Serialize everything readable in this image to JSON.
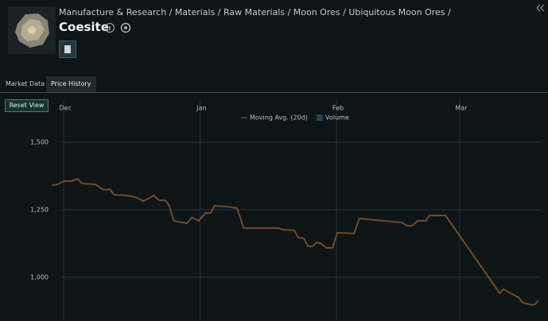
{
  "breadcrumb": "Manufacture & Research / Materials / Raw Materials / Moon Ores / Ubiquitous Moon Ores /",
  "item_name": "Coesite",
  "tabs": [
    "Market Data",
    "Price History"
  ],
  "reset_button": "Reset View",
  "chart_data": {
    "type": "line",
    "x": [
      -2.7,
      -1.4,
      0,
      1.8,
      3.1,
      4.2,
      7.2,
      9.0,
      10.5,
      11.4,
      14.5,
      16.3,
      18.1,
      19.5,
      20.4,
      21.7,
      23.1,
      23.9,
      25.0,
      28.0,
      29.1,
      30.7,
      32.2,
      33.4,
      34.3,
      37.0,
      39.4,
      40.9,
      48.8,
      49.9,
      52.4,
      53.3,
      54.6,
      55.5,
      56.6,
      57.5,
      58.4,
      59.7,
      61.1,
      62.2,
      66.0,
      67.2,
      70.5,
      76.8,
      78.1,
      79.2,
      80.5,
      82.3,
      83.2,
      86.8,
      99.1,
      100.0,
      102.2,
      103.4,
      104.3,
      106.6,
      107.2,
      107.9
    ],
    "series": [
      {
        "name": "Moving Avg. (20d)",
        "color": "#6e4b27",
        "values": [
          1341,
          1344,
          1356,
          1356,
          1365,
          1347,
          1344,
          1324,
          1326,
          1306,
          1303,
          1297,
          1282,
          1294,
          1303,
          1285,
          1285,
          1268,
          1209,
          1200,
          1221,
          1209,
          1238,
          1238,
          1265,
          1262,
          1256,
          1182,
          1182,
          1176,
          1174,
          1147,
          1144,
          1115,
          1115,
          1129,
          1126,
          1109,
          1109,
          1165,
          1162,
          1218,
          1212,
          1203,
          1191,
          1191,
          1209,
          1209,
          1229,
          1229,
          941,
          956,
          935,
          926,
          906,
          897,
          900,
          915
        ]
      },
      {
        "name": "Volume",
        "color": "#1c4656",
        "values": [
          null,
          null,
          null,
          null,
          null,
          null,
          null,
          null,
          null,
          null,
          null,
          null,
          null,
          null,
          null,
          null,
          null,
          null,
          null,
          null,
          null,
          null,
          null,
          null,
          null,
          null,
          null,
          null,
          null,
          null,
          null,
          null,
          null,
          null,
          null,
          null,
          null,
          null,
          null,
          null,
          null,
          null,
          null,
          null,
          null,
          null,
          null,
          null,
          null,
          null,
          null,
          null,
          null,
          null,
          null,
          null,
          null,
          null
        ]
      }
    ],
    "xlim": [
      -14.5,
      110.1
    ],
    "xticks": [
      {
        "value": 0,
        "label": "Dec"
      },
      {
        "value": 31,
        "label": "Jan"
      },
      {
        "value": 62,
        "label": "Feb"
      },
      {
        "value": 90,
        "label": "Mar"
      }
    ],
    "ylim": [
      838,
      1659
    ],
    "yticks": [
      {
        "value": 1000,
        "label": "1,000"
      },
      {
        "value": 1250,
        "label": "1,250"
      },
      {
        "value": 1500,
        "label": "1,500"
      }
    ],
    "grid": true
  }
}
